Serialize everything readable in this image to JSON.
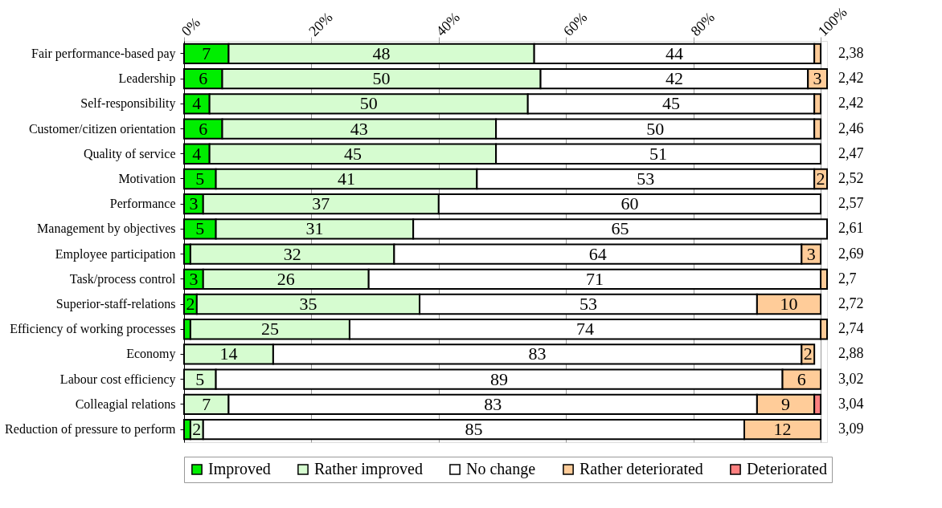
{
  "chart_data": {
    "type": "bar",
    "orientation": "horizontal",
    "stacked": true,
    "categories": [
      "Fair performance-based pay",
      "Leadership",
      "Self-responsibility",
      "Customer/citizen orientation",
      "Quality of service",
      "Motivation",
      "Performance",
      "Management by objectives",
      "Employee participation",
      "Task/process control",
      "Superior-staff-relations",
      "Efficiency of working processes",
      "Economy",
      "Labour cost efficiency",
      "Colleagial relations",
      "Reduction of pressure to perform"
    ],
    "series": [
      {
        "name": "Improved",
        "color": "#00ee00",
        "values": [
          7,
          6,
          4,
          6,
          4,
          5,
          3,
          5,
          1,
          3,
          2,
          1,
          0,
          0,
          0,
          1
        ],
        "value_labels": [
          "7",
          "6",
          "4",
          "6",
          "4",
          "5",
          "3",
          "5",
          null,
          "3",
          "2",
          null,
          null,
          null,
          null,
          null
        ]
      },
      {
        "name": "Rather improved",
        "color": "#d6fcd0",
        "values": [
          48,
          50,
          50,
          43,
          45,
          41,
          37,
          31,
          32,
          26,
          35,
          25,
          14,
          5,
          7,
          2
        ],
        "value_labels": [
          "48",
          "50",
          "50",
          "43",
          "45",
          "41",
          "37",
          "31",
          "32",
          "26",
          "35",
          "25",
          "14",
          "5",
          "7",
          "2"
        ]
      },
      {
        "name": "No change",
        "color": "#ffffff",
        "values": [
          44,
          42,
          45,
          50,
          51,
          53,
          60,
          65,
          64,
          71,
          53,
          74,
          83,
          89,
          83,
          85
        ],
        "value_labels": [
          "44",
          "42",
          "45",
          "50",
          "51",
          "53",
          "60",
          "65",
          "64",
          "71",
          "53",
          "74",
          "83",
          "89",
          "83",
          "85"
        ]
      },
      {
        "name": "Rather deteriorated",
        "color": "#ffcc99",
        "values": [
          1,
          3,
          1,
          1,
          0,
          2,
          0,
          0,
          3,
          1,
          10,
          1,
          2,
          6,
          9,
          12
        ],
        "value_labels": [
          null,
          "3",
          null,
          null,
          null,
          "2",
          null,
          null,
          "3",
          null,
          "10",
          null,
          "2",
          "6",
          "9",
          "12"
        ]
      },
      {
        "name": "Deteriorated",
        "color": "#ff8080",
        "values": [
          0,
          0,
          0,
          0,
          0,
          0,
          0,
          0,
          0,
          0,
          0,
          0,
          0,
          0,
          1,
          0
        ]
      }
    ],
    "xlim": [
      0,
      101
    ],
    "xticks": [
      {
        "value": 0,
        "label": "0%"
      },
      {
        "value": 20,
        "label": "20%"
      },
      {
        "value": 40,
        "label": "40%"
      },
      {
        "value": 60,
        "label": "60%"
      },
      {
        "value": 80,
        "label": "80%"
      },
      {
        "value": 100,
        "label": "100%"
      }
    ],
    "grid": "x",
    "legend": "bottom",
    "annotations": [
      "2,38",
      "2,42",
      "2,42",
      "2,46",
      "2,47",
      "2,52",
      "2,57",
      "2,61",
      "2,69",
      "2,7",
      "2,72",
      "2,74",
      "2,88",
      "3,02",
      "3,04",
      "3,09"
    ]
  }
}
